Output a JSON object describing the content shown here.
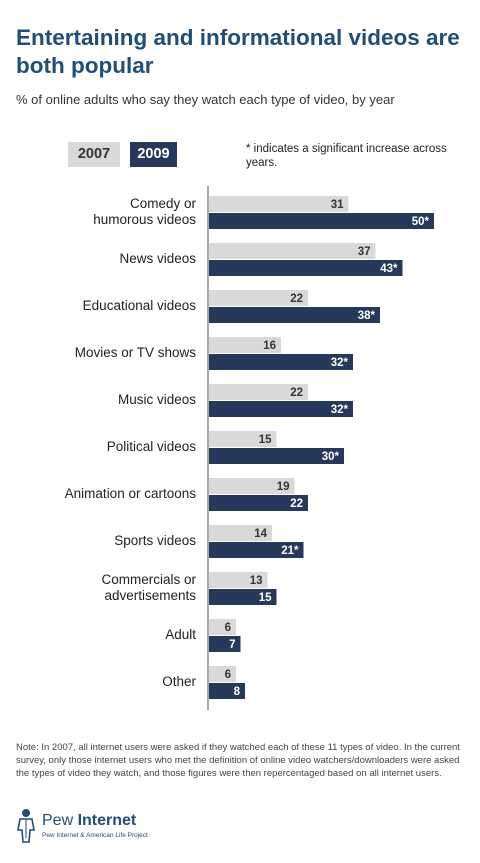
{
  "header": {
    "title": "Entertaining and informational videos are both popular",
    "subtitle": "% of online adults who say they watch each type of video, by year"
  },
  "legend": {
    "items": [
      "2007",
      "2009"
    ],
    "note": "* indicates a significant increase across years."
  },
  "colors": {
    "series_2007": "#d9d9d9",
    "series_2009": "#27395a",
    "title": "#1f4e79"
  },
  "chart_data": {
    "type": "bar",
    "orientation": "horizontal",
    "categories": [
      [
        "Comedy or",
        "humorous videos"
      ],
      [
        "News videos"
      ],
      [
        "Educational videos"
      ],
      [
        "Movies or TV shows"
      ],
      [
        "Music videos"
      ],
      [
        "Political videos"
      ],
      [
        "Animation or cartoons"
      ],
      [
        "Sports videos"
      ],
      [
        "Commercials or",
        "advertisements"
      ],
      [
        "Adult"
      ],
      [
        "Other"
      ]
    ],
    "series": [
      {
        "name": "2007",
        "values": [
          31,
          37,
          22,
          16,
          22,
          15,
          19,
          14,
          13,
          6,
          6
        ],
        "labels": [
          "31",
          "37",
          "22",
          "16",
          "22",
          "15",
          "19",
          "14",
          "13",
          "6",
          "6"
        ]
      },
      {
        "name": "2009",
        "values": [
          50,
          43,
          38,
          32,
          32,
          30,
          22,
          21,
          15,
          7,
          8
        ],
        "labels": [
          "50*",
          "43*",
          "38*",
          "32*",
          "32*",
          "30*",
          "22",
          "21*",
          "15",
          "7",
          "8"
        ]
      }
    ],
    "xlim": [
      0,
      50
    ]
  },
  "footer": {
    "note": "Note: In 2007, all internet users were asked if they watched each of these 11 types of video.  In the current survey, only those internet users who met the definition of online video watchers/downloaders were asked the types of video they watch, and those figures were then repercentaged based on all internet users.",
    "logo_word1": "Pew",
    "logo_word2": "Internet",
    "logo_sub": "Pew Internet & American Life Project"
  }
}
